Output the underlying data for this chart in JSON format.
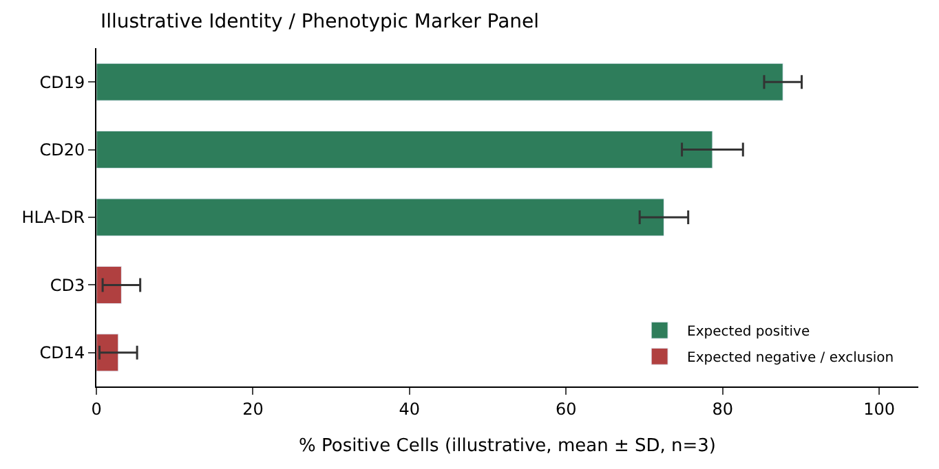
{
  "chart_data": {
    "type": "bar",
    "orientation": "horizontal",
    "title": "Illustrative Identity / Phenotypic Marker Panel",
    "xlabel": "% Positive Cells (illustrative, mean ± SD, n=3)",
    "categories": [
      "CD19",
      "CD20",
      "HLA-DR",
      "CD3",
      "CD14"
    ],
    "series": [
      {
        "name": "Expected positive",
        "color": "#2e7d5b",
        "values": [
          87.7,
          78.7,
          72.5,
          null,
          null
        ],
        "errors": [
          2.4,
          3.9,
          3.1,
          null,
          null
        ]
      },
      {
        "name": "Expected negative / exclusion",
        "color": "#b04040",
        "values": [
          null,
          null,
          null,
          3.2,
          2.8
        ],
        "errors": [
          null,
          null,
          null,
          2.4,
          2.4
        ]
      }
    ],
    "xlim": [
      0,
      105
    ],
    "xticks": [
      0,
      20,
      40,
      60,
      80,
      100
    ],
    "legend": "bottom right"
  }
}
